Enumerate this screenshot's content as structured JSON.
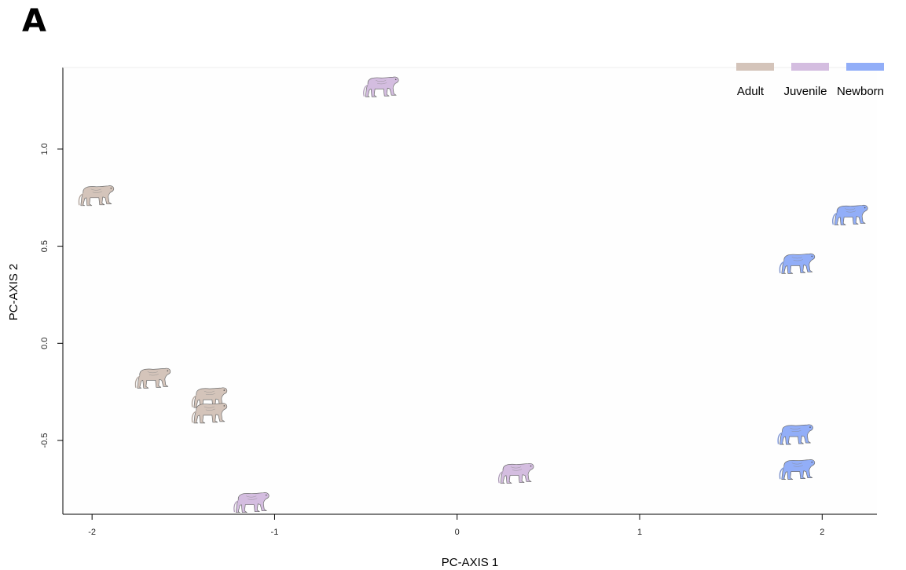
{
  "panel_label": "A",
  "chart_data": {
    "type": "scatter",
    "title": "",
    "xlabel": "PC-AXIS 1",
    "ylabel": "PC-AXIS 2",
    "xlim": [
      -2.16,
      2.3
    ],
    "ylim": [
      -0.88,
      1.42
    ],
    "x_ticks": [
      -2,
      -1,
      0,
      1,
      2
    ],
    "x_tick_labels": [
      "-2",
      "-1",
      "0",
      "1",
      "2"
    ],
    "y_ticks": [
      -0.5,
      0.0,
      0.5,
      1.0
    ],
    "y_tick_labels": [
      "-0.5",
      "0.0",
      "0.5",
      "1.0"
    ],
    "grid": false,
    "legend_position": "top-right",
    "marker": "monkey-silhouette-icon",
    "series": [
      {
        "name": "Adult",
        "color": "#d4c4ba",
        "points": [
          {
            "x": -1.98,
            "y": 0.77
          },
          {
            "x": -1.67,
            "y": -0.17
          },
          {
            "x": -1.36,
            "y": -0.27
          },
          {
            "x": -1.36,
            "y": -0.35
          }
        ]
      },
      {
        "name": "Juvenile",
        "color": "#d4bde0",
        "points": [
          {
            "x": -0.42,
            "y": 1.33
          },
          {
            "x": 0.32,
            "y": -0.66
          },
          {
            "x": -1.13,
            "y": -0.81
          }
        ]
      },
      {
        "name": "Newborn",
        "color": "#92aef8",
        "points": [
          {
            "x": 2.15,
            "y": 0.67
          },
          {
            "x": 1.86,
            "y": 0.42
          },
          {
            "x": 1.85,
            "y": -0.46
          },
          {
            "x": 1.86,
            "y": -0.64
          }
        ]
      }
    ]
  }
}
